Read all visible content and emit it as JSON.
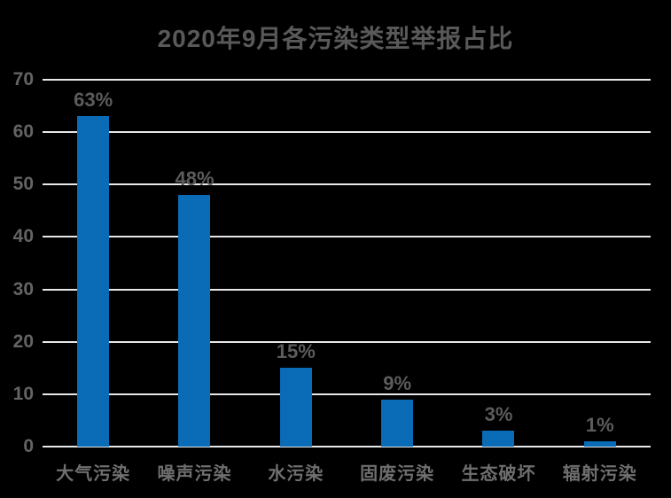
{
  "title": "2020年9月各污染类型举报占比",
  "chart_data": {
    "type": "bar",
    "title": "2020年9月各污染类型举报占比",
    "categories": [
      "大气污染",
      "噪声污染",
      "水污染",
      "固废污染",
      "生态破坏",
      "辐射污染"
    ],
    "values": [
      63,
      48,
      15,
      9,
      3,
      1
    ],
    "data_labels": [
      "63%",
      "48%",
      "15%",
      "9%",
      "3%",
      "1%"
    ],
    "xlabel": "",
    "ylabel": "",
    "ylim": [
      0,
      70
    ],
    "yticks": [
      0,
      10,
      20,
      30,
      40,
      50,
      60,
      70
    ],
    "grid": true,
    "legend": false
  },
  "colors": {
    "background": "#000000",
    "bar": "#0A6CB6",
    "title_text": "#595959",
    "axis_text": "#646464",
    "value_text": "#5C5C5C",
    "category_text": "#6F6F6F",
    "gridline": "#E8E8E8"
  }
}
